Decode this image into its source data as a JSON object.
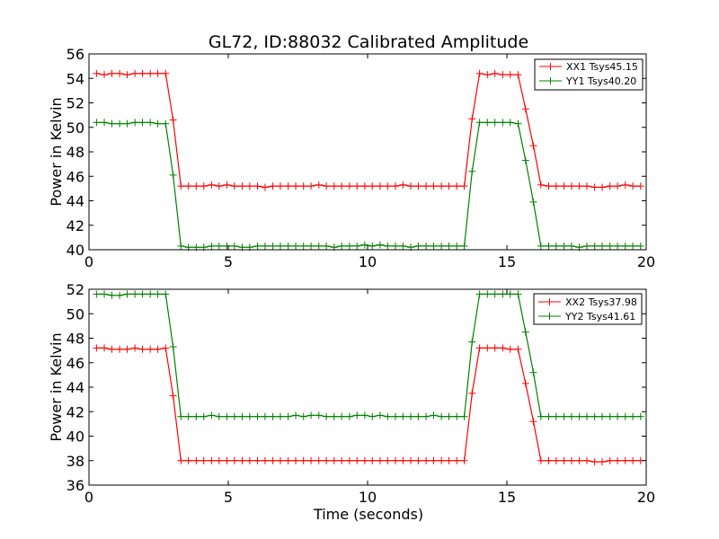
{
  "figure": {
    "title": "GL72, ID:88032 Calibrated Amplitude",
    "xlabel": "Time (seconds)"
  },
  "colors": {
    "red": "#ff0000",
    "green": "#008000"
  },
  "chart_data": [
    {
      "type": "line",
      "title": "GL72, ID:88032 Calibrated Amplitude",
      "xlabel": "",
      "ylabel": "Power in Kelvin",
      "xlim": [
        0,
        20
      ],
      "ylim": [
        40,
        56
      ],
      "xticks": [
        0,
        5,
        10,
        15,
        20
      ],
      "yticks": [
        40,
        42,
        44,
        46,
        48,
        50,
        52,
        54,
        56
      ],
      "grid": false,
      "legend_position": "top-right",
      "x": [
        0.27,
        0.55,
        0.82,
        1.1,
        1.37,
        1.65,
        1.92,
        2.2,
        2.47,
        2.75,
        3.02,
        3.3,
        3.57,
        3.85,
        4.12,
        4.4,
        4.67,
        4.95,
        5.22,
        5.5,
        5.77,
        6.05,
        6.32,
        6.6,
        6.87,
        7.15,
        7.42,
        7.7,
        7.97,
        8.25,
        8.52,
        8.8,
        9.07,
        9.35,
        9.62,
        9.9,
        10.17,
        10.45,
        10.72,
        11.0,
        11.27,
        11.55,
        11.82,
        12.1,
        12.37,
        12.65,
        12.92,
        13.2,
        13.47,
        13.75,
        14.02,
        14.3,
        14.57,
        14.85,
        15.12,
        15.4,
        15.67,
        15.95,
        16.22,
        16.5,
        16.77,
        17.05,
        17.32,
        17.6,
        17.87,
        18.15,
        18.42,
        18.7,
        18.97,
        19.25,
        19.52,
        19.8
      ],
      "series": [
        {
          "name": "XX1 Tsys45.15",
          "color": "#ff0000",
          "values": [
            54.4,
            54.3,
            54.4,
            54.4,
            54.3,
            54.4,
            54.4,
            54.4,
            54.4,
            54.4,
            50.6,
            45.2,
            45.2,
            45.2,
            45.2,
            45.3,
            45.2,
            45.3,
            45.2,
            45.2,
            45.2,
            45.2,
            45.1,
            45.2,
            45.2,
            45.2,
            45.2,
            45.2,
            45.2,
            45.3,
            45.2,
            45.2,
            45.2,
            45.2,
            45.2,
            45.2,
            45.2,
            45.2,
            45.2,
            45.2,
            45.3,
            45.2,
            45.2,
            45.2,
            45.2,
            45.2,
            45.2,
            45.2,
            45.2,
            50.7,
            54.4,
            54.3,
            54.4,
            54.3,
            54.3,
            54.3,
            51.5,
            48.5,
            45.3,
            45.2,
            45.2,
            45.2,
            45.2,
            45.2,
            45.2,
            45.1,
            45.1,
            45.2,
            45.2,
            45.3,
            45.2,
            45.2
          ]
        },
        {
          "name": "YY1 Tsys40.20",
          "color": "#008000",
          "values": [
            50.4,
            50.4,
            50.3,
            50.3,
            50.3,
            50.4,
            50.4,
            50.4,
            50.3,
            50.3,
            46.1,
            40.3,
            40.2,
            40.2,
            40.2,
            40.3,
            40.3,
            40.3,
            40.3,
            40.2,
            40.2,
            40.3,
            40.3,
            40.3,
            40.3,
            40.3,
            40.3,
            40.3,
            40.3,
            40.3,
            40.3,
            40.2,
            40.3,
            40.3,
            40.3,
            40.4,
            40.3,
            40.4,
            40.3,
            40.3,
            40.3,
            40.2,
            40.3,
            40.3,
            40.3,
            40.3,
            40.3,
            40.3,
            40.3,
            46.4,
            50.4,
            50.4,
            50.4,
            50.4,
            50.4,
            50.3,
            47.3,
            43.9,
            40.3,
            40.3,
            40.3,
            40.3,
            40.3,
            40.2,
            40.3,
            40.3,
            40.3,
            40.3,
            40.3,
            40.3,
            40.3,
            40.3
          ]
        }
      ]
    },
    {
      "type": "line",
      "title": "",
      "xlabel": "Time (seconds)",
      "ylabel": "Power in Kelvin",
      "xlim": [
        0,
        20
      ],
      "ylim": [
        36,
        52
      ],
      "xticks": [
        0,
        5,
        10,
        15,
        20
      ],
      "yticks": [
        36,
        38,
        40,
        42,
        44,
        46,
        48,
        50,
        52
      ],
      "grid": false,
      "legend_position": "top-right",
      "x": [
        0.27,
        0.55,
        0.82,
        1.1,
        1.37,
        1.65,
        1.92,
        2.2,
        2.47,
        2.75,
        3.02,
        3.3,
        3.57,
        3.85,
        4.12,
        4.4,
        4.67,
        4.95,
        5.22,
        5.5,
        5.77,
        6.05,
        6.32,
        6.6,
        6.87,
        7.15,
        7.42,
        7.7,
        7.97,
        8.25,
        8.52,
        8.8,
        9.07,
        9.35,
        9.62,
        9.9,
        10.17,
        10.45,
        10.72,
        11.0,
        11.27,
        11.55,
        11.82,
        12.1,
        12.37,
        12.65,
        12.92,
        13.2,
        13.47,
        13.75,
        14.02,
        14.3,
        14.57,
        14.85,
        15.12,
        15.4,
        15.67,
        15.95,
        16.22,
        16.5,
        16.77,
        17.05,
        17.32,
        17.6,
        17.87,
        18.15,
        18.42,
        18.7,
        18.97,
        19.25,
        19.52,
        19.8
      ],
      "series": [
        {
          "name": "XX2 Tsys37.98",
          "color": "#ff0000",
          "values": [
            47.2,
            47.2,
            47.1,
            47.1,
            47.1,
            47.2,
            47.1,
            47.1,
            47.1,
            47.2,
            43.3,
            38.0,
            38.0,
            38.0,
            38.0,
            38.0,
            38.0,
            38.0,
            38.0,
            38.0,
            38.0,
            38.0,
            38.0,
            38.0,
            38.0,
            38.0,
            38.0,
            38.0,
            38.0,
            38.0,
            38.0,
            38.0,
            38.0,
            38.0,
            38.0,
            38.0,
            38.0,
            38.0,
            38.0,
            38.0,
            38.0,
            38.0,
            38.0,
            38.0,
            38.0,
            38.0,
            38.0,
            38.0,
            38.0,
            43.5,
            47.2,
            47.2,
            47.2,
            47.2,
            47.1,
            47.1,
            44.3,
            41.2,
            38.0,
            38.0,
            38.0,
            38.0,
            38.0,
            38.0,
            38.0,
            37.9,
            37.9,
            38.0,
            38.0,
            38.0,
            38.0,
            38.0
          ]
        },
        {
          "name": "YY2 Tsys41.61",
          "color": "#008000",
          "values": [
            51.6,
            51.6,
            51.5,
            51.5,
            51.6,
            51.6,
            51.6,
            51.6,
            51.6,
            51.6,
            47.3,
            41.6,
            41.6,
            41.6,
            41.6,
            41.7,
            41.6,
            41.6,
            41.6,
            41.6,
            41.6,
            41.6,
            41.6,
            41.6,
            41.6,
            41.6,
            41.7,
            41.6,
            41.7,
            41.7,
            41.6,
            41.6,
            41.6,
            41.6,
            41.7,
            41.7,
            41.6,
            41.7,
            41.6,
            41.6,
            41.6,
            41.6,
            41.6,
            41.6,
            41.7,
            41.6,
            41.6,
            41.6,
            41.6,
            47.7,
            51.6,
            51.6,
            51.6,
            51.6,
            51.6,
            51.6,
            48.5,
            45.2,
            41.6,
            41.6,
            41.6,
            41.6,
            41.6,
            41.6,
            41.6,
            41.6,
            41.6,
            41.6,
            41.6,
            41.6,
            41.6,
            41.6
          ]
        }
      ]
    }
  ]
}
